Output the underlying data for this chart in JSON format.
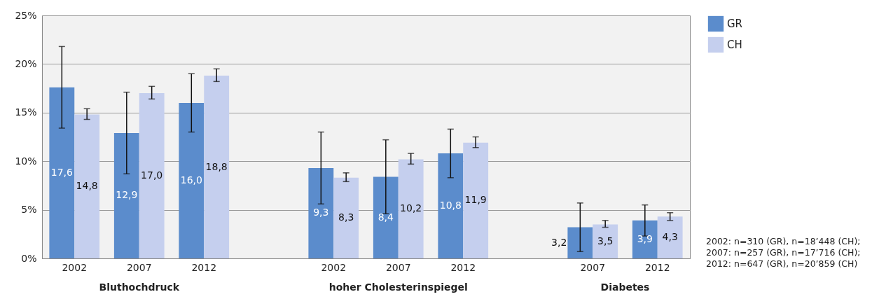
{
  "chart_data": {
    "type": "bar",
    "categories": [
      "2002",
      "2007",
      "2012",
      null,
      "2002",
      "2007",
      "2012",
      null,
      "2007",
      "2012"
    ],
    "series": [
      {
        "name": "GR",
        "color": "#5b8ccc",
        "values": [
          17.6,
          12.9,
          16.0,
          null,
          9.3,
          8.4,
          10.8,
          null,
          3.2,
          3.9
        ],
        "value_labels": [
          "17,6",
          "12,9",
          "16,0",
          null,
          "9,3",
          "8,4",
          "10,8",
          null,
          "3,2",
          "3,9"
        ],
        "errors": [
          [
            13.4,
            21.8
          ],
          [
            8.7,
            17.1
          ],
          [
            13.0,
            19.0
          ],
          null,
          [
            5.6,
            13.0
          ],
          [
            4.6,
            12.2
          ],
          [
            8.3,
            13.3
          ],
          null,
          [
            0.7,
            5.7
          ],
          [
            2.3,
            5.5
          ]
        ]
      },
      {
        "name": "CH",
        "color": "#c5cfee",
        "values": [
          14.8,
          17.0,
          18.8,
          null,
          8.3,
          10.2,
          11.9,
          null,
          3.5,
          4.3
        ],
        "value_labels": [
          "14,8",
          "17,0",
          "18,8",
          null,
          "8,3",
          "10,2",
          "11,9",
          null,
          "3,5",
          "4,3"
        ],
        "errors": [
          [
            14.3,
            15.4
          ],
          [
            16.4,
            17.7
          ],
          [
            18.2,
            19.5
          ],
          null,
          [
            7.9,
            8.8
          ],
          [
            9.7,
            10.8
          ],
          [
            11.4,
            12.5
          ],
          null,
          [
            3.2,
            3.9
          ],
          [
            3.9,
            4.7
          ]
        ]
      }
    ],
    "ylim": [
      0,
      25
    ],
    "yticks": [
      {
        "value": 0,
        "label": "0%"
      },
      {
        "value": 5,
        "label": "5%"
      },
      {
        "value": 10,
        "label": "10%"
      },
      {
        "value": 15,
        "label": "15%"
      },
      {
        "value": 20,
        "label": "20%"
      },
      {
        "value": 25,
        "label": "25%"
      }
    ],
    "grid": "y",
    "legend": "top right",
    "annotations": [
      "Bluthochdruck",
      "hoher Cholesterinspiegel",
      "Diabetes",
      "2002: n=310 (GR), n=18’448 (CH);\n2007: n=257 (GR), n=17’716 (CH);\n2012: n=647 (GR), n=20’859 (CH)"
    ]
  }
}
